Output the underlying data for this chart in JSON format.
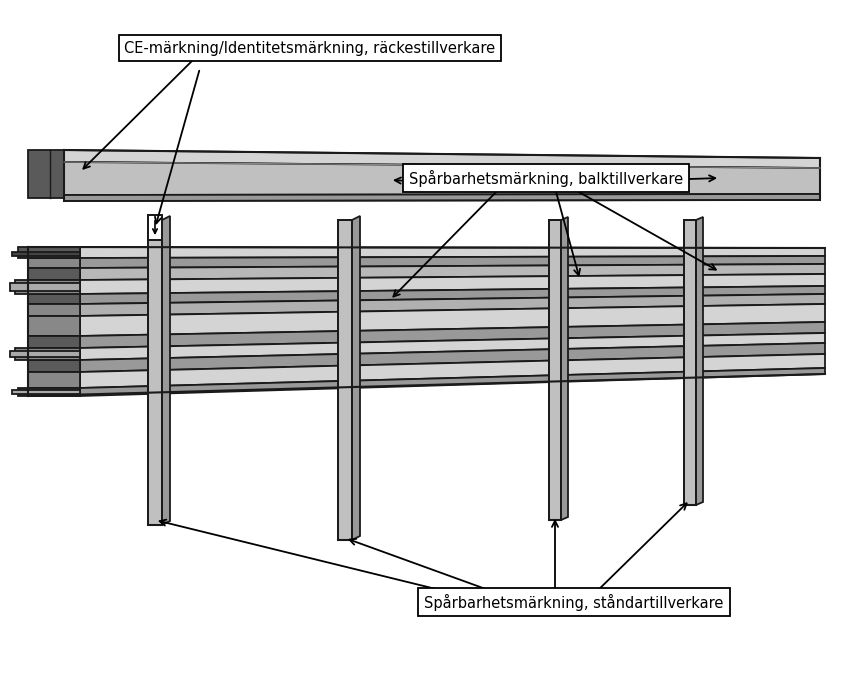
{
  "bg_color": "#ffffff",
  "label1": "CE-märkning/Identitetsmärkning, räckestillverkare",
  "label2": "Spårbarhetsmärkning, balktillverkare",
  "label3": "Spårbarhetsmärkning, ståndartillverkare",
  "dark_gray": "#5a5a5a",
  "mid_gray": "#999999",
  "light_gray": "#c0c0c0",
  "lighter_gray": "#d4d4d4",
  "outline": "#1a1a1a",
  "fig_width": 8.63,
  "fig_height": 6.76,
  "dpi": 100
}
